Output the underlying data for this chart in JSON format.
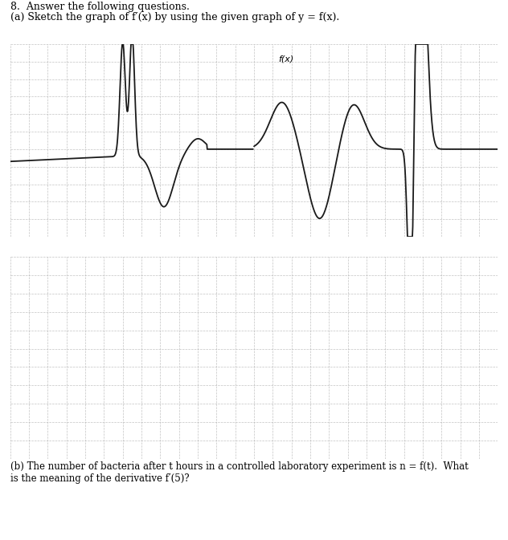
{
  "title_line1": "8.  Answer the following questions.",
  "title_line2": "(a) Sketch the graph of f′(x) by using the given graph of y = f(x).",
  "part_b_text": "(b) The number of bacteria after t hours in a controlled laboratory experiment is n = f(t).  What\nis the meaning of the derivative f′(5)?",
  "fx_label": "f(x)",
  "grid_color": "#aaaaaa",
  "axis_color": "#666666",
  "curve_color": "#1a1a1a",
  "bg_color": "#ffffff",
  "grid_alpha": 0.7,
  "title_fontsize": 9.0,
  "label_fontsize": 8.5
}
